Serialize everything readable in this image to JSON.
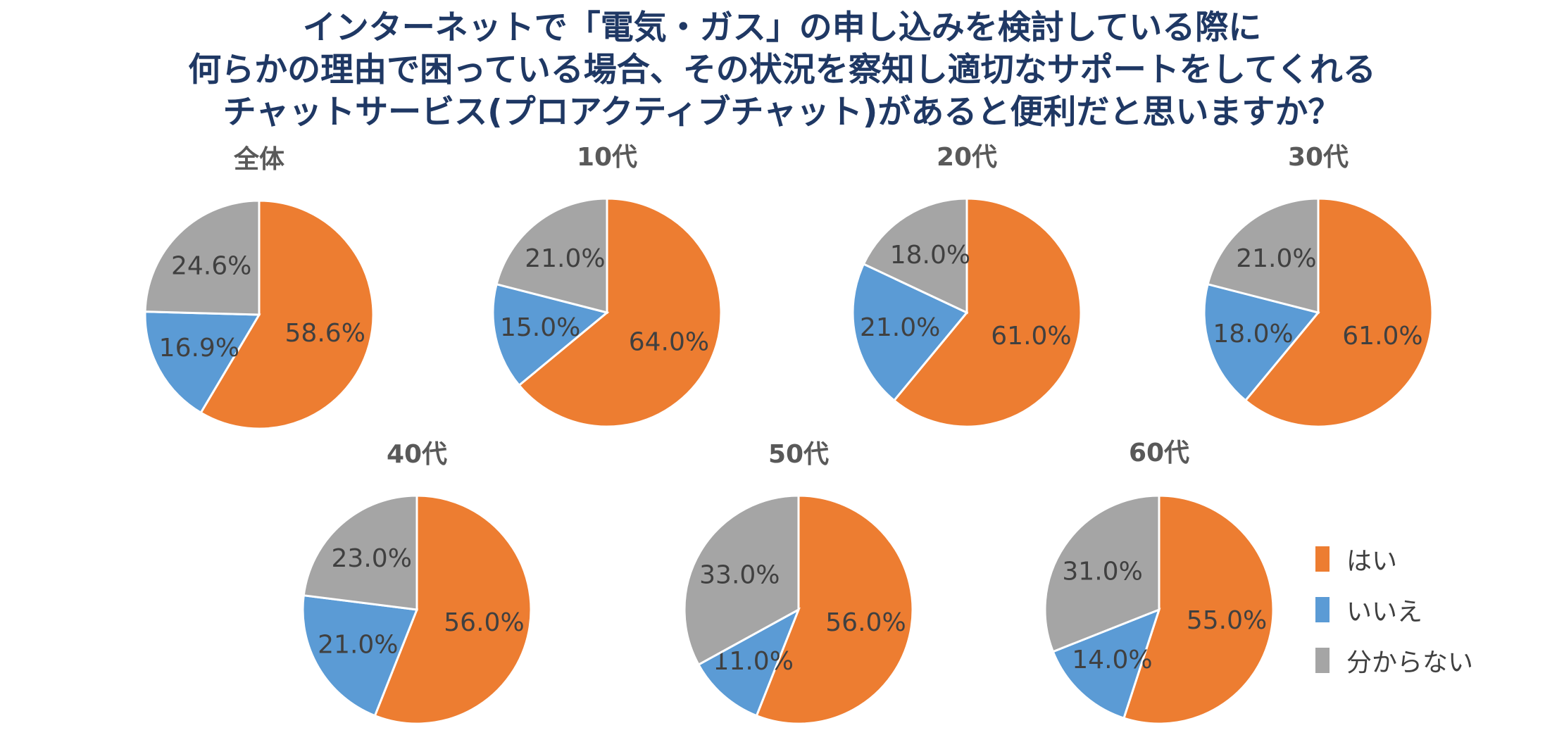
{
  "title_lines": [
    "インターネットで「電気・ガス」の申し込みを検討している際に",
    "何らかの理由で困っている場合、その状況を察知し適切なサポートをしてくれる",
    "チャットサービス(プロアクティブチャット)があると便利だと思いますか？"
  ],
  "legend": [
    {
      "label": "はい",
      "color": "#ED7D31"
    },
    {
      "label": "いいえ",
      "color": "#5B9BD5"
    },
    {
      "label": "分からない",
      "color": "#A5A5A5"
    }
  ],
  "chart_data": [
    {
      "type": "pie",
      "title": "全体",
      "categories": [
        "はい",
        "いいえ",
        "分からない"
      ],
      "values": [
        58.6,
        16.9,
        24.6
      ],
      "labels": [
        "58.6%",
        "16.9%",
        "24.6%"
      ]
    },
    {
      "type": "pie",
      "title": "10代",
      "categories": [
        "はい",
        "いいえ",
        "分からない"
      ],
      "values": [
        64.0,
        15.0,
        21.0
      ],
      "labels": [
        "64.0%",
        "15.0%",
        "21.0%"
      ]
    },
    {
      "type": "pie",
      "title": "20代",
      "categories": [
        "はい",
        "いいえ",
        "分からない"
      ],
      "values": [
        61.0,
        21.0,
        18.0
      ],
      "labels": [
        "61.0%",
        "21.0%",
        "18.0%"
      ]
    },
    {
      "type": "pie",
      "title": "30代",
      "categories": [
        "はい",
        "いいえ",
        "分からない"
      ],
      "values": [
        61.0,
        18.0,
        21.0
      ],
      "labels": [
        "61.0%",
        "18.0%",
        "21.0%"
      ]
    },
    {
      "type": "pie",
      "title": "40代",
      "categories": [
        "はい",
        "いいえ",
        "分からない"
      ],
      "values": [
        56.0,
        21.0,
        23.0
      ],
      "labels": [
        "56.0%",
        "21.0%",
        "23.0%"
      ]
    },
    {
      "type": "pie",
      "title": "50代",
      "categories": [
        "はい",
        "いいえ",
        "分からない"
      ],
      "values": [
        56.0,
        11.0,
        33.0
      ],
      "labels": [
        "56.0%",
        "11.0%",
        "33.0%"
      ]
    },
    {
      "type": "pie",
      "title": "60代",
      "categories": [
        "はい",
        "いいえ",
        "分からない"
      ],
      "values": [
        55.0,
        14.0,
        31.0
      ],
      "labels": [
        "55.0%",
        "14.0%",
        "31.0%"
      ]
    }
  ]
}
